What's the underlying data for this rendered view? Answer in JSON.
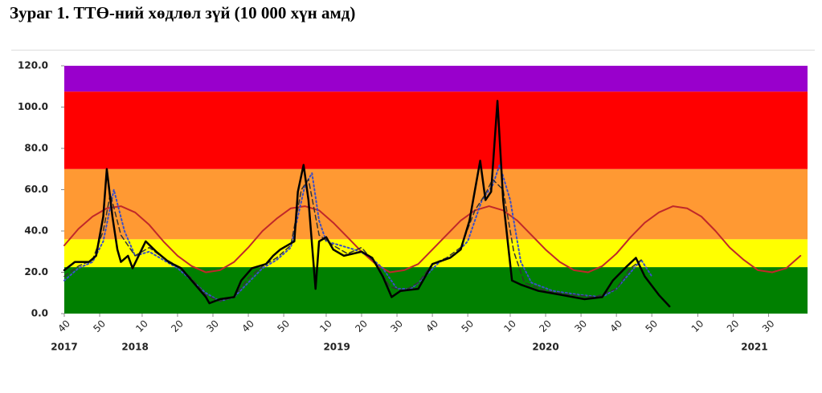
{
  "chart_data": {
    "type": "line",
    "title": "Зураг 1. ТТӨ-ний хөдлөл зүй (10 000 хүн амд)",
    "xlim": [
      0,
      210
    ],
    "ylim": [
      0,
      120
    ],
    "yticks": [
      {
        "value": 0,
        "label": "0.0"
      },
      {
        "value": 20,
        "label": "20.0"
      },
      {
        "value": 40,
        "label": "40.0"
      },
      {
        "value": 60,
        "label": "60.0"
      },
      {
        "value": 80,
        "label": "80.0"
      },
      {
        "value": 100,
        "label": "100.0"
      },
      {
        "value": 120,
        "label": "120.0"
      }
    ],
    "xticks": [
      {
        "value": 0,
        "label": "40"
      },
      {
        "value": 10,
        "label": "50"
      },
      {
        "value": 22,
        "label": "10"
      },
      {
        "value": 32,
        "label": "20"
      },
      {
        "value": 42,
        "label": "30"
      },
      {
        "value": 52,
        "label": "40"
      },
      {
        "value": 62,
        "label": "50"
      },
      {
        "value": 74,
        "label": "10"
      },
      {
        "value": 84,
        "label": "20"
      },
      {
        "value": 94,
        "label": "30"
      },
      {
        "value": 104,
        "label": "40"
      },
      {
        "value": 114,
        "label": "50"
      },
      {
        "value": 126,
        "label": "10"
      },
      {
        "value": 136,
        "label": "20"
      },
      {
        "value": 146,
        "label": "30"
      },
      {
        "value": 156,
        "label": "40"
      },
      {
        "value": 166,
        "label": "50"
      },
      {
        "value": 179,
        "label": "10"
      },
      {
        "value": 189,
        "label": "20"
      },
      {
        "value": 199,
        "label": "30"
      }
    ],
    "year_labels": [
      {
        "value": 0,
        "label": "2017"
      },
      {
        "value": 20,
        "label": "2018"
      },
      {
        "value": 77,
        "label": "2019"
      },
      {
        "value": 136,
        "label": "2020"
      },
      {
        "value": 195,
        "label": "2021"
      }
    ],
    "bands": [
      {
        "from": 0,
        "to": 22.5,
        "color": "#008000"
      },
      {
        "from": 22.5,
        "to": 36,
        "color": "#ffff00"
      },
      {
        "from": 36,
        "to": 70,
        "color": "#ff9933"
      },
      {
        "from": 70,
        "to": 107.5,
        "color": "#ff0000"
      },
      {
        "from": 107.5,
        "to": 120,
        "color": "#9900cc"
      }
    ],
    "series": [
      {
        "color": "#c0282a",
        "dash": "solid",
        "width": 2,
        "x": [
          0,
          4,
          8,
          12,
          16,
          20,
          24,
          28,
          32,
          36,
          40,
          44,
          48,
          52,
          56,
          60,
          64,
          68,
          72,
          76,
          80,
          84,
          88,
          92,
          96,
          100,
          104,
          108,
          112,
          116,
          120,
          124,
          128,
          132,
          136,
          140,
          144,
          148,
          152,
          156,
          160,
          164,
          168,
          172,
          176,
          180,
          184,
          188,
          192,
          196,
          200,
          204,
          208
        ],
        "values": [
          33,
          41,
          47,
          51,
          52,
          49,
          43,
          35,
          28,
          23,
          20,
          21,
          25,
          32,
          40,
          46,
          51,
          52,
          50,
          44,
          37,
          30,
          24,
          20,
          21,
          24,
          31,
          38,
          45,
          50,
          52,
          50,
          45,
          38,
          31,
          25,
          21,
          20,
          23,
          29,
          37,
          44,
          49,
          52,
          51,
          47,
          40,
          32,
          26,
          21,
          20,
          22,
          28
        ]
      },
      {
        "color": "#3a4fc7",
        "dash": "dotted",
        "width": 2,
        "x": [
          0,
          4,
          8,
          11,
          14,
          17,
          20,
          24,
          28,
          32,
          36,
          40,
          44,
          48,
          52,
          56,
          60,
          64,
          68,
          70,
          72,
          74,
          78,
          82,
          86,
          90,
          94,
          98,
          102,
          106,
          110,
          114,
          118,
          121,
          123,
          126,
          129,
          132,
          138,
          146,
          152,
          156,
          160,
          163,
          166
        ],
        "values": [
          16,
          22,
          25,
          35,
          60,
          40,
          28,
          30,
          26,
          22,
          16,
          10,
          6,
          8,
          15,
          22,
          26,
          32,
          62,
          68,
          45,
          35,
          33,
          31,
          28,
          22,
          12,
          12,
          18,
          25,
          28,
          35,
          55,
          62,
          72,
          55,
          25,
          15,
          11,
          9,
          8,
          12,
          20,
          26,
          18
        ]
      },
      {
        "color": "#333333",
        "dash": "dashed",
        "width": 1.5,
        "x": [
          0,
          4,
          8,
          11,
          13,
          16,
          20,
          24,
          28,
          32,
          36,
          40,
          44,
          48,
          52,
          56,
          60,
          64,
          67,
          69,
          72,
          76,
          80,
          84,
          88,
          92,
          96,
          100,
          104,
          108,
          112,
          116,
          119,
          121,
          124,
          127,
          130,
          136,
          144,
          150,
          156,
          160,
          163
        ],
        "values": [
          18,
          23,
          26,
          40,
          58,
          38,
          28,
          32,
          27,
          23,
          17,
          9,
          6,
          8,
          17,
          23,
          27,
          33,
          60,
          65,
          38,
          33,
          29,
          32,
          24,
          13,
          11,
          15,
          24,
          27,
          32,
          50,
          58,
          65,
          60,
          30,
          15,
          11,
          9,
          8,
          12,
          22,
          26
        ]
      },
      {
        "color": "#000000",
        "dash": "solid",
        "width": 2.5,
        "x": [
          0,
          3,
          7,
          9,
          11,
          12,
          13.6,
          15,
          16,
          18,
          19.3,
          21,
          23,
          26,
          29.5,
          33,
          36,
          40,
          41,
          44,
          48,
          50,
          53,
          57,
          59,
          61,
          65,
          66,
          67.6,
          69,
          71,
          72,
          74,
          76,
          79,
          84,
          87,
          90,
          92.5,
          95,
          100,
          104,
          109,
          112,
          114.5,
          117.5,
          119,
          120.6,
          122.4,
          124,
          126.5,
          129,
          134,
          140.6,
          147,
          152,
          155,
          159,
          161.5,
          164,
          168,
          171
        ],
        "values": [
          21,
          25,
          25,
          28,
          47,
          70,
          47,
          31,
          25,
          28,
          22,
          28,
          35,
          30,
          25,
          22,
          16,
          8,
          5,
          7,
          8,
          16,
          22,
          24,
          28,
          31,
          35,
          59,
          72,
          55,
          12,
          35,
          37,
          31,
          28,
          30,
          27,
          18,
          8,
          11,
          12,
          24,
          27,
          31,
          45,
          74,
          55,
          59,
          103,
          55,
          16,
          14,
          11,
          9,
          7,
          8,
          16,
          23,
          27,
          18,
          9,
          3.5
        ]
      }
    ]
  }
}
